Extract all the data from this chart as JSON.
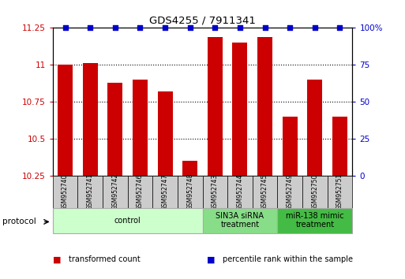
{
  "title": "GDS4255 / 7911341",
  "samples": [
    "GSM952740",
    "GSM952741",
    "GSM952742",
    "GSM952746",
    "GSM952747",
    "GSM952748",
    "GSM952743",
    "GSM952744",
    "GSM952745",
    "GSM952749",
    "GSM952750",
    "GSM952751"
  ],
  "transformed_count": [
    11.0,
    11.01,
    10.88,
    10.9,
    10.82,
    10.35,
    11.19,
    11.15,
    11.19,
    10.65,
    10.9,
    10.65
  ],
  "percentile_rank": [
    100,
    100,
    100,
    100,
    100,
    100,
    100,
    100,
    100,
    100,
    100,
    100
  ],
  "bar_color": "#cc0000",
  "percentile_color": "#0000cc",
  "ylim_left": [
    10.25,
    11.25
  ],
  "ylim_right": [
    0,
    100
  ],
  "yticks_left": [
    10.25,
    10.5,
    10.75,
    11.0,
    11.25
  ],
  "yticks_right": [
    0,
    25,
    50,
    75,
    100
  ],
  "ytick_labels_left": [
    "10.25",
    "10.5",
    "10.75",
    "11",
    "11.25"
  ],
  "ytick_labels_right": [
    "0",
    "25",
    "50",
    "75",
    "100%"
  ],
  "groups": [
    {
      "label": "control",
      "start": 0,
      "end": 6,
      "color": "#ccffcc",
      "border": "#aaaaaa"
    },
    {
      "label": "SIN3A siRNA\ntreatment",
      "start": 6,
      "end": 9,
      "color": "#88dd88",
      "border": "#aaaaaa"
    },
    {
      "label": "miR-138 mimic\ntreatment",
      "start": 9,
      "end": 12,
      "color": "#44bb44",
      "border": "#aaaaaa"
    }
  ],
  "protocol_label": "protocol",
  "legend_items": [
    {
      "color": "#cc0000",
      "label": "transformed count"
    },
    {
      "color": "#0000cc",
      "label": "percentile rank within the sample"
    }
  ],
  "background_color": "#ffffff",
  "tick_label_color_left": "#cc0000",
  "tick_label_color_right": "#0000cc"
}
